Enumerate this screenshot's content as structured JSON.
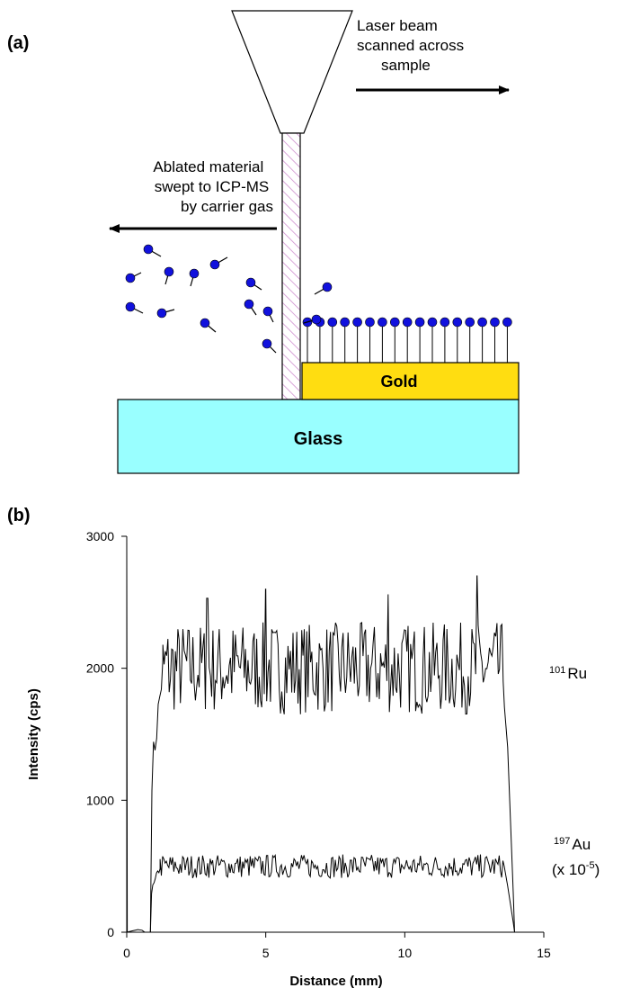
{
  "panel_a": {
    "label": "(a)",
    "beam_label": [
      "Laser beam",
      "scanned across",
      "sample"
    ],
    "ablation_label": [
      "Ablated material",
      "swept to ICP-MS",
      "by carrier gas"
    ],
    "gold_label": "Gold",
    "glass_label": "Glass",
    "colors": {
      "gold": "#ffdd11",
      "glass": "#99ffff",
      "molecule": "#1111dd",
      "hatch": "#cc88cc"
    }
  },
  "panel_b": {
    "label": "(b)",
    "series_labels": {
      "ru_mass": "101",
      "ru_symbol": "Ru",
      "au_mass": "197",
      "au_symbol": "Au",
      "au_scale_prefix": "(x 10",
      "au_scale_exp": "-5",
      "au_scale_suffix": ")"
    }
  },
  "chart_data": {
    "type": "line",
    "xlabel": "Distance (mm)",
    "ylabel": "Intensity (cps)",
    "xlim": [
      0,
      15
    ],
    "ylim": [
      0,
      3000
    ],
    "xticks": [
      0,
      5,
      10,
      15
    ],
    "yticks": [
      0,
      1000,
      2000,
      3000
    ],
    "grid": false,
    "series": [
      {
        "name": "101Ru",
        "start": 0.85,
        "end": 13.95,
        "plateau_start": 1.3,
        "plateau_end": 13.6,
        "mean": 2000,
        "noise": 350,
        "notable_peaks": [
          [
            2.9,
            2530
          ],
          [
            5.0,
            2600
          ],
          [
            9.4,
            2560
          ],
          [
            12.6,
            2700
          ]
        ]
      },
      {
        "name": "197Au (x 10^-5)",
        "start": 0.85,
        "end": 13.95,
        "plateau_start": 1.2,
        "plateau_end": 13.6,
        "mean": 500,
        "noise": 90,
        "pre_baseline": 20
      }
    ]
  }
}
